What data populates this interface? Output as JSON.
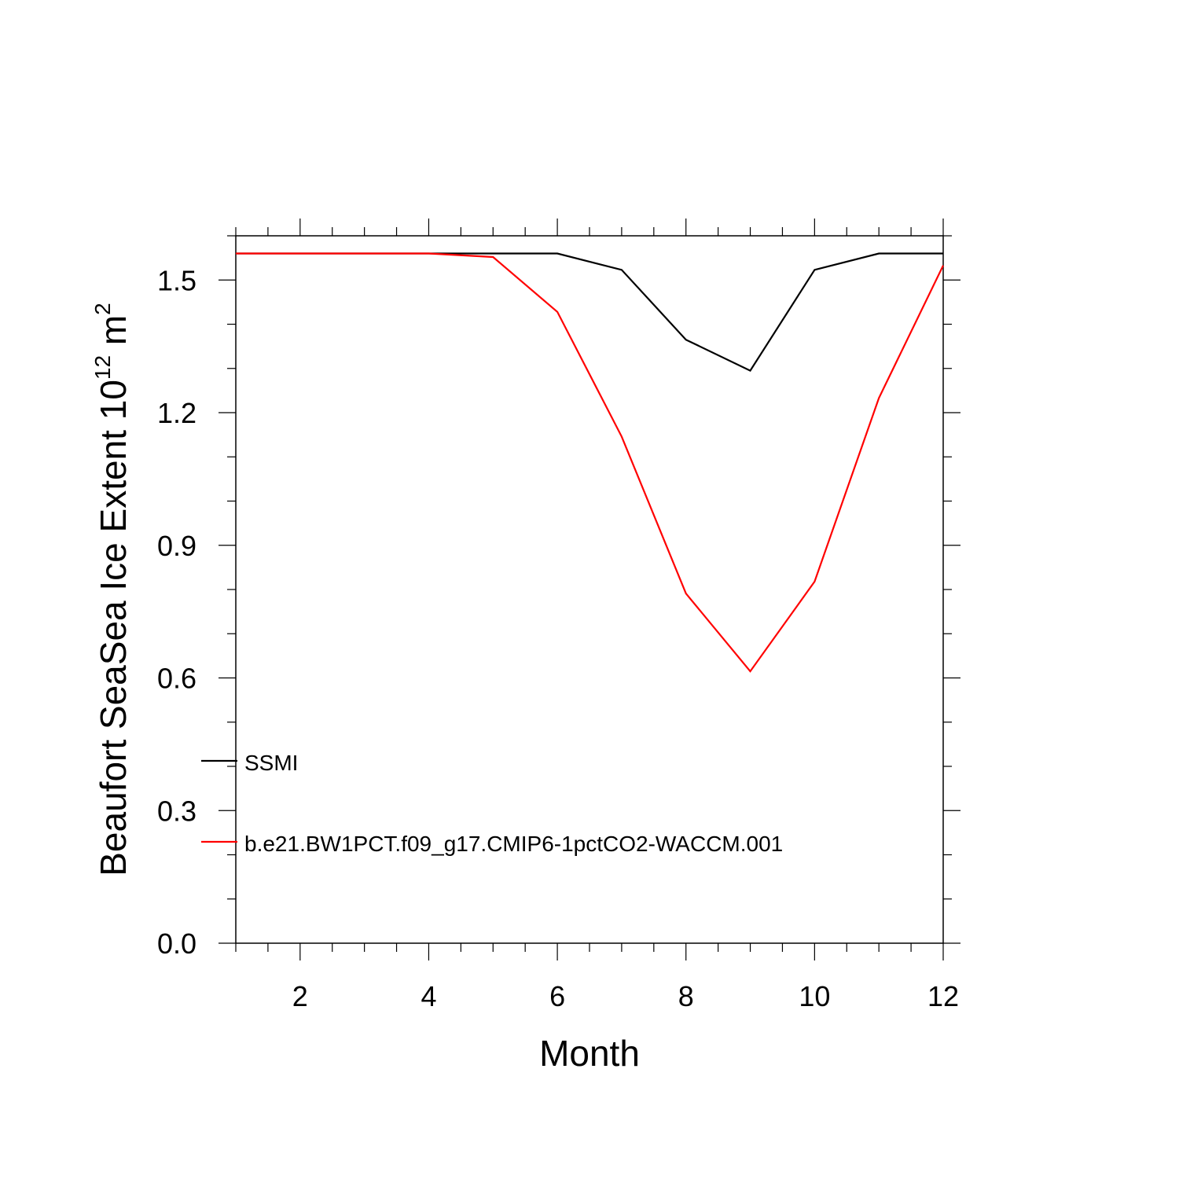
{
  "chart_data": {
    "type": "line",
    "title": "",
    "xlabel": "Month",
    "ylabel": {
      "base": "Beaufort SeaSea Ice Extent 10",
      "exponent": "12",
      "unit": " m",
      "unit_exponent": "2"
    },
    "xlim": [
      1,
      12
    ],
    "ylim": [
      0.0,
      1.6
    ],
    "x_ticks_major": [
      2,
      4,
      6,
      8,
      10,
      12
    ],
    "x_ticks_minor_step": 0.5,
    "y_ticks_major": [
      0.0,
      0.3,
      0.6,
      0.9,
      1.2,
      1.5
    ],
    "y_tick_labels": [
      "0.0",
      "0.3",
      "0.6",
      "0.9",
      "1.2",
      "1.5"
    ],
    "y_ticks_minor_step": 0.1,
    "grid": false,
    "legend_position": "bottom-left",
    "x": [
      1,
      2,
      3,
      4,
      5,
      6,
      7,
      8,
      9,
      10,
      11,
      12
    ],
    "series": [
      {
        "name": "SSMI",
        "color": "#000000",
        "values": [
          1.56,
          1.56,
          1.56,
          1.56,
          1.56,
          1.56,
          1.523,
          1.365,
          1.295,
          1.523,
          1.56,
          1.56
        ]
      },
      {
        "name": "b.e21.BW1PCT.f09_g17.CMIP6-1pctCO2-WACCM.001",
        "color": "#ff0000",
        "values": [
          1.56,
          1.56,
          1.56,
          1.56,
          1.552,
          1.428,
          1.146,
          0.791,
          0.615,
          0.818,
          1.233,
          1.533
        ]
      }
    ]
  }
}
